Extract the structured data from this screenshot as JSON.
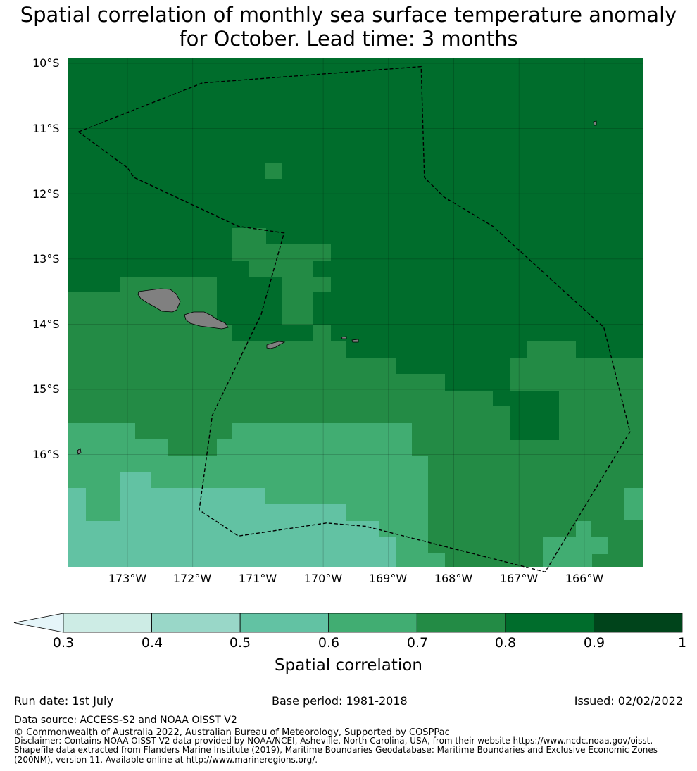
{
  "title_line1": "Spatial correlation of monthly sea surface temperature anomaly",
  "title_line2": "for October. Lead time: 3 months",
  "y_ticks": [
    "10°S",
    "11°S",
    "12°S",
    "13°S",
    "14°S",
    "15°S",
    "16°S"
  ],
  "x_ticks": [
    "173°W",
    "172°W",
    "171°W",
    "170°W",
    "169°W",
    "168°W",
    "167°W",
    "166°W"
  ],
  "colorbar": {
    "label": "Spatial correlation",
    "ticks": [
      "0.3",
      "0.4",
      "0.5",
      "0.6",
      "0.7",
      "0.8",
      "0.9",
      "1"
    ],
    "colors": [
      "#cdece5",
      "#99d7c8",
      "#62c2a3",
      "#41ad72",
      "#238b45",
      "#006d2c",
      "#00441b"
    ],
    "extend_color": "#e5f5f9"
  },
  "footer": {
    "run_date": "Run date: 1st July",
    "base_period": "Base period: 1981-2018",
    "issued": "Issued: 02/02/2022",
    "data_source": "Data source: ACCESS-S2 and NOAA OISST V2",
    "copyright": "© Commonwealth of Australia 2022, Australian Bureau of Meteorology, Supported by COSPPac",
    "disclaimer1": "Disclaimer: Contains NOAA OISST V2 data provided by NOAA/NCEI, Asheville, North Carolina, USA, from their website https://www.ncdc.noaa.gov/oisst.",
    "disclaimer2": "Shapefile data extracted from Flanders Marine Institute (2019), Maritime Boundaries Geodatabase: Maritime Boundaries and Exclusive Economic Zones",
    "disclaimer3": "(200NM), version 11. Available online at http://www.marineregions.org/."
  },
  "map": {
    "lon_range": [
      -173.9,
      -165.1
    ],
    "lat_range": [
      -17.8,
      -10.0
    ],
    "class_colors": {
      "0.5": "#62c2a3",
      "0.6": "#41ad72",
      "0.7": "#238b45",
      "0.8": "#006d2c"
    },
    "correlation_regions": [
      {
        "class": "0.8",
        "desc": "north"
      },
      {
        "class": "0.7",
        "desc": "central band"
      },
      {
        "class": "0.6",
        "desc": "south"
      },
      {
        "class": "0.5",
        "desc": "south-west"
      }
    ],
    "eez_boundary": [
      [
        -173.75,
        -11.05
      ],
      [
        -171.85,
        -10.3
      ],
      [
        -168.5,
        -10.05
      ],
      [
        -168.45,
        -11.75
      ],
      [
        -168.15,
        -12.05
      ],
      [
        -167.4,
        -12.5
      ],
      [
        -165.7,
        -14.05
      ],
      [
        -165.3,
        -15.65
      ],
      [
        -166.6,
        -17.8
      ],
      [
        -169.35,
        -17.1
      ],
      [
        -169.95,
        -17.05
      ],
      [
        -171.3,
        -17.25
      ],
      [
        -171.9,
        -16.85
      ],
      [
        -171.7,
        -15.4
      ],
      [
        -170.95,
        -13.85
      ],
      [
        -170.6,
        -12.6
      ],
      [
        -171.3,
        -12.5
      ],
      [
        -172.9,
        -11.75
      ],
      [
        -173.0,
        -11.6
      ],
      [
        -173.75,
        -11.05
      ]
    ],
    "islands": [
      "Savai'i",
      "Upolu",
      "Tutuila",
      "Manu'a"
    ]
  }
}
